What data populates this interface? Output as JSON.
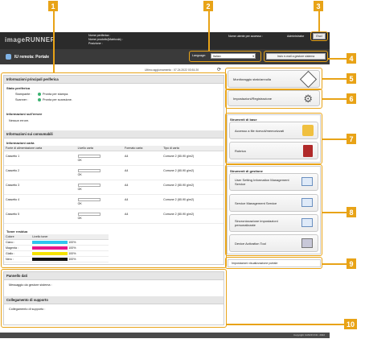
{
  "header": {
    "logo": "imageRUNNER",
    "device_name_label": "Nome periferica :",
    "product_name_label": "Nome prodotto(Matricola) :",
    "location_label": "Posizione :",
    "user_label": "Nome utente per accesso :",
    "user_value": "Administrator",
    "logout_label": "Esci"
  },
  "titlebar": {
    "title": "IU remota: Portale",
    "language_label": "Language:",
    "language_value": "Italian",
    "mail_button": "Invio e-mail a gestore sistema"
  },
  "timestamp": "Ultimo aggiornamento : 07.24.2022 03:51:20",
  "device_info": {
    "title": "Informazioni principali periferica",
    "status_title": "Stato periferica",
    "printer_label": "Stampante :",
    "printer_status": "Pronta per stampa.",
    "scanner_label": "Scanner :",
    "scanner_status": "Pronta per scansione.",
    "error_title": "Informazioni sull'errore",
    "error_value": "Nessun errore."
  },
  "consumables": {
    "title": "Informazioni sui consumabili",
    "paper_title": "Informazioni carta",
    "columns": [
      "Fonte di alimentazione carta",
      "Livello carta",
      "Formato carta",
      "Tipo di carta"
    ],
    "rows": [
      {
        "source": "Cassetto 1",
        "level": "OK",
        "size": "A4",
        "type": "Comune 2 (80-90 g/m2)"
      },
      {
        "source": "Cassetto 2",
        "level": "OK",
        "size": "A4",
        "type": "Comune 2 (80-90 g/m2)"
      },
      {
        "source": "Cassetto 3",
        "level": "OK",
        "size": "A4",
        "type": "Comune 2 (80-90 g/m2)"
      },
      {
        "source": "Cassetto 4",
        "level": "OK",
        "size": "A4",
        "type": "Comune 2 (80-90 g/m2)"
      },
      {
        "source": "Cassetto 5",
        "level": "OK",
        "size": "A4",
        "type": "Comune 2 (80-90 g/m2)"
      }
    ],
    "toner_title": "Toner residuo",
    "toner_columns": [
      "Colore",
      "Livello toner"
    ],
    "toners": [
      {
        "name": "Ciano :",
        "color": "#2ec4ef",
        "level": "100%"
      },
      {
        "name": "Magenta :",
        "color": "#e6168a",
        "level": "100%"
      },
      {
        "name": "Giallo :",
        "color": "#f4e200",
        "level": "100%"
      },
      {
        "name": "Nero :",
        "color": "#111111",
        "level": "100%"
      }
    ]
  },
  "bulletin": {
    "title": "Pannello dati",
    "message_label": "Messaggio da gestore sistema :",
    "support_title": "Collegamento di supporto",
    "support_label": "Collegamento di supporto :"
  },
  "right": {
    "status_monitor": "Monitoraggio stato/annulla",
    "settings": "Impostazioni/Registrazione",
    "basic_tools_title": "Strumenti di base",
    "access_files": "Accesso a file ricevuti/memorizzati",
    "address_book": "Rubrica",
    "mgmt_tools_title": "Strumenti di gestione",
    "user_setting": "User Setting Information Management Service",
    "service_mgmt": "Service Management Service",
    "sync_settings": "Sincronizzazione impostazioni personalizzate",
    "device_activation": "Device Activation Tool",
    "portal_settings": "Impostazioni visualizzazione portale"
  },
  "footer": "Copyright CANON INC. 2022",
  "callouts": [
    "1",
    "2",
    "3",
    "4",
    "5",
    "6",
    "7",
    "8",
    "9",
    "10"
  ],
  "accent_color": "#e8a317"
}
